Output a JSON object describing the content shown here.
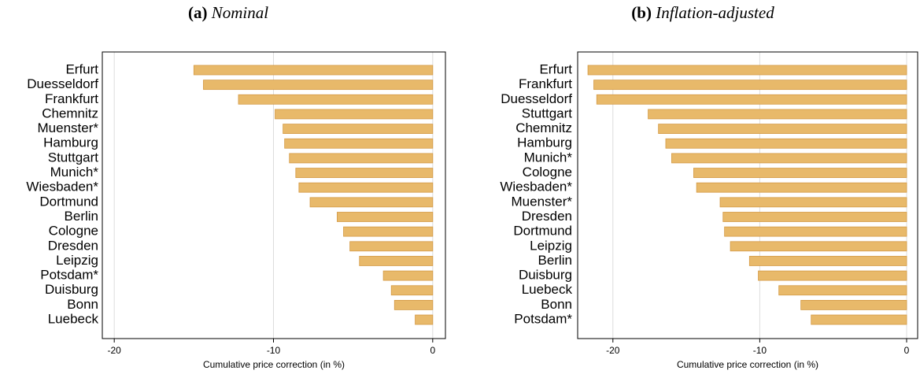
{
  "chart_data": [
    {
      "type": "barh",
      "panel_label": "(a)",
      "title": "Nominal",
      "xlabel": "Cumulative price correction (in %)",
      "categories": [
        "Erfurt",
        "Duesseldorf",
        "Frankfurt",
        "Chemnitz",
        "Muenster*",
        "Hamburg",
        "Stuttgart",
        "Munich*",
        "Wiesbaden*",
        "Dortmund",
        "Berlin",
        "Cologne",
        "Dresden",
        "Leipzig",
        "Potsdam*",
        "Duisburg",
        "Bonn",
        "Luebeck"
      ],
      "values": [
        -15.0,
        -14.4,
        -12.2,
        -9.9,
        -9.4,
        -9.3,
        -9.0,
        -8.6,
        -8.4,
        -7.7,
        -6.0,
        -5.6,
        -5.2,
        -4.6,
        -3.1,
        -2.6,
        -2.4,
        -1.1
      ],
      "color": "#e8b96a",
      "xlim": [
        -20.75,
        0.8
      ],
      "xticks": [
        -20,
        -10,
        0
      ],
      "grid": true
    },
    {
      "type": "barh",
      "panel_label": "(b)",
      "title": "Inflation-adjusted",
      "xlabel": "Cumulative price correction (in %)",
      "categories": [
        "Erfurt",
        "Frankfurt",
        "Duesseldorf",
        "Stuttgart",
        "Chemnitz",
        "Hamburg",
        "Munich*",
        "Cologne",
        "Wiesbaden*",
        "Muenster*",
        "Dresden",
        "Dortmund",
        "Leipzig",
        "Berlin",
        "Duisburg",
        "Luebeck",
        "Bonn",
        "Potsdam*"
      ],
      "values": [
        -21.7,
        -21.3,
        -21.1,
        -17.6,
        -16.9,
        -16.4,
        -16.0,
        -14.5,
        -14.3,
        -12.7,
        -12.5,
        -12.4,
        -12.0,
        -10.7,
        -10.1,
        -8.7,
        -7.2,
        -6.5
      ],
      "color": "#e8b96a",
      "xlim": [
        -22.4,
        0.75
      ],
      "xticks": [
        -20,
        -10,
        0
      ],
      "grid": true
    }
  ]
}
